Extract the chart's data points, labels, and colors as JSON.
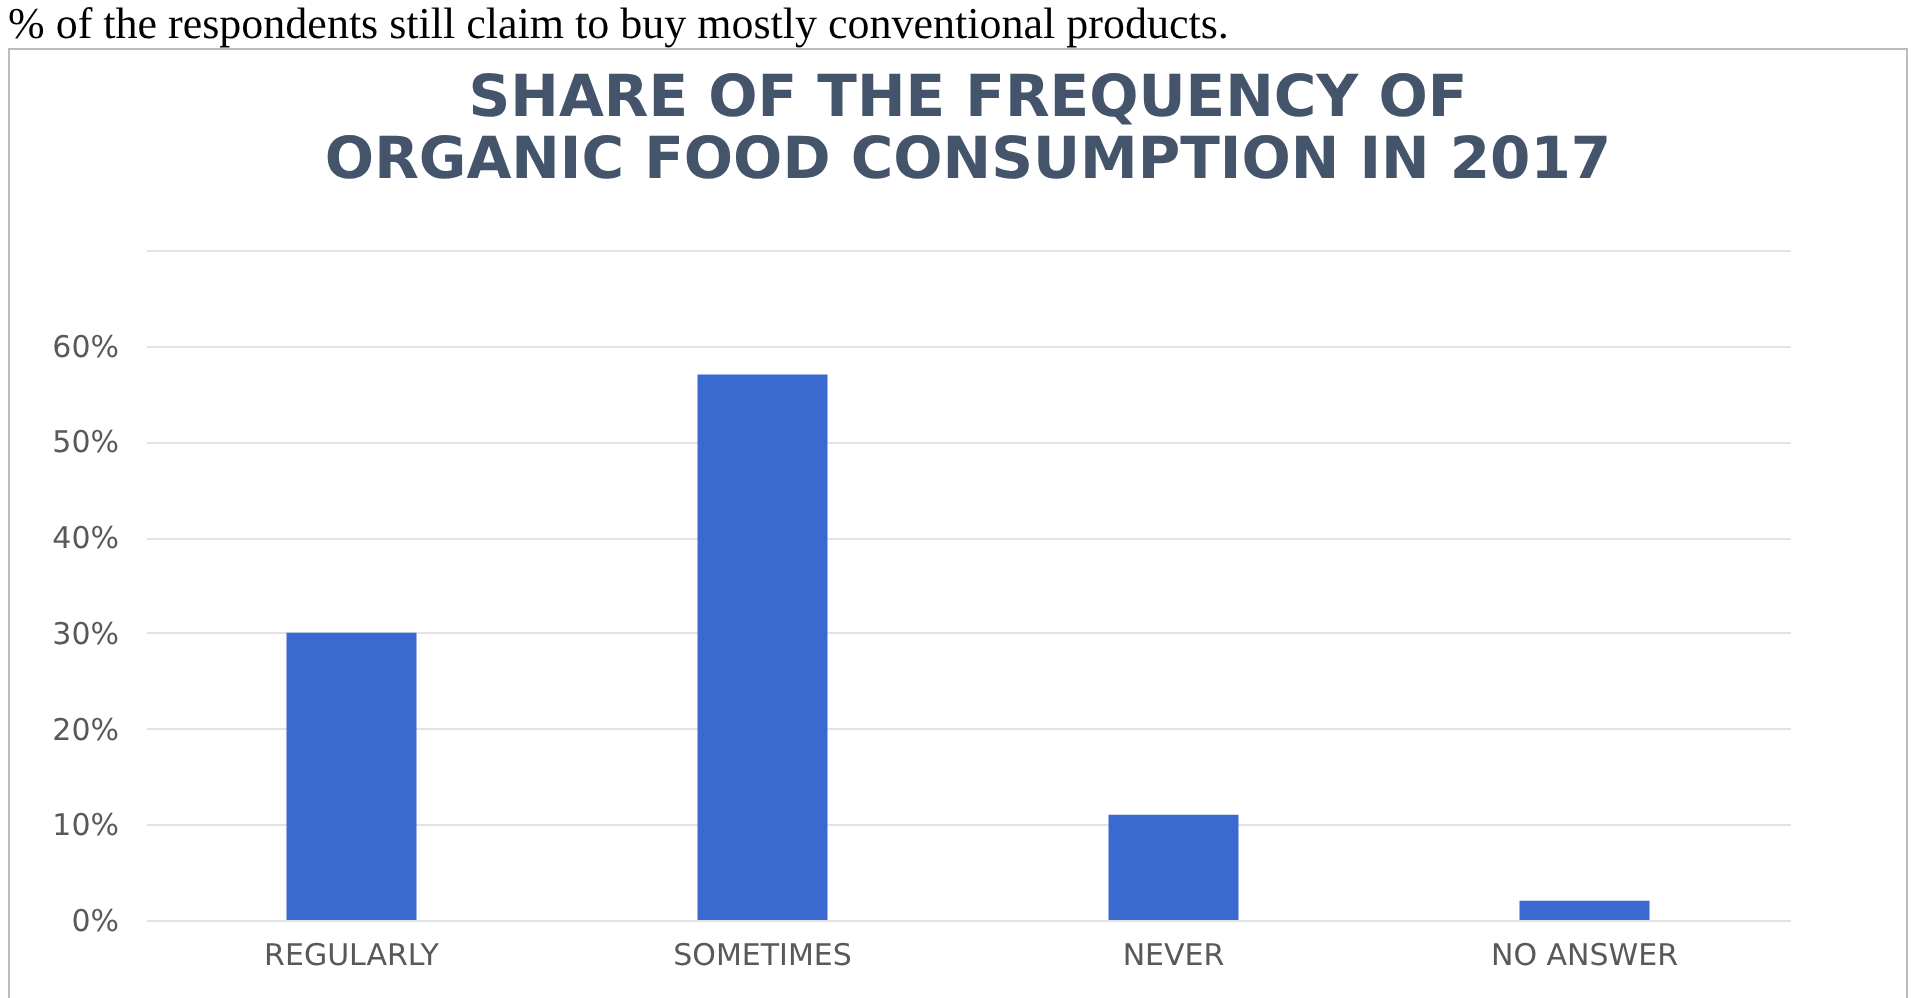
{
  "chart_data": {
    "type": "bar",
    "title": "SHARE OF THE FREQUENCY OF ORGANIC FOOD CONSUMPTION IN 2017",
    "categories": [
      "REGULARLY",
      "SOMETIMES",
      "NEVER",
      "NO ANSWER"
    ],
    "values": [
      30,
      57,
      11,
      2
    ],
    "color": "#3a6ad0",
    "ylim": [
      0,
      70
    ],
    "yticks": [
      {
        "value": 0,
        "label": "0%"
      },
      {
        "value": 10,
        "label": "10%"
      },
      {
        "value": 20,
        "label": "20%"
      },
      {
        "value": 30,
        "label": "30%"
      },
      {
        "value": 40,
        "label": "40%"
      },
      {
        "value": 50,
        "label": "50%"
      },
      {
        "value": 60,
        "label": "60%"
      },
      {
        "value": 70,
        "label": null
      }
    ],
    "grid": "y",
    "annotations": [
      "% of the respondents still claim to buy mostly conventional products."
    ]
  }
}
